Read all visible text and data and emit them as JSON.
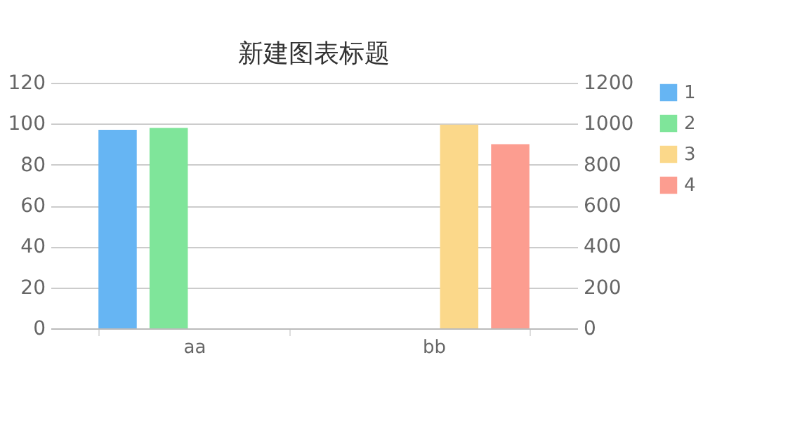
{
  "chart_data": {
    "type": "bar",
    "title": "新建图表标题",
    "categories": [
      "aa",
      "bb"
    ],
    "series": [
      {
        "name": "1",
        "color": "#66b5f3",
        "values": [
          97,
          null
        ]
      },
      {
        "name": "2",
        "color": "#7fe59a",
        "values": [
          98,
          null
        ]
      },
      {
        "name": "3",
        "color": "#fbd88a",
        "values": [
          null,
          995
        ],
        "axis": "y2"
      },
      {
        "name": "4",
        "color": "#fc9d90",
        "values": [
          null,
          900
        ],
        "axis": "y2"
      }
    ],
    "ylim": [
      0,
      120
    ],
    "yticks": [
      0,
      20,
      40,
      60,
      80,
      100,
      120
    ],
    "y2lim": [
      0,
      1200
    ],
    "y2ticks": [
      0,
      200,
      400,
      600,
      800,
      1000,
      1200
    ],
    "grid": "y",
    "legend": "right"
  }
}
